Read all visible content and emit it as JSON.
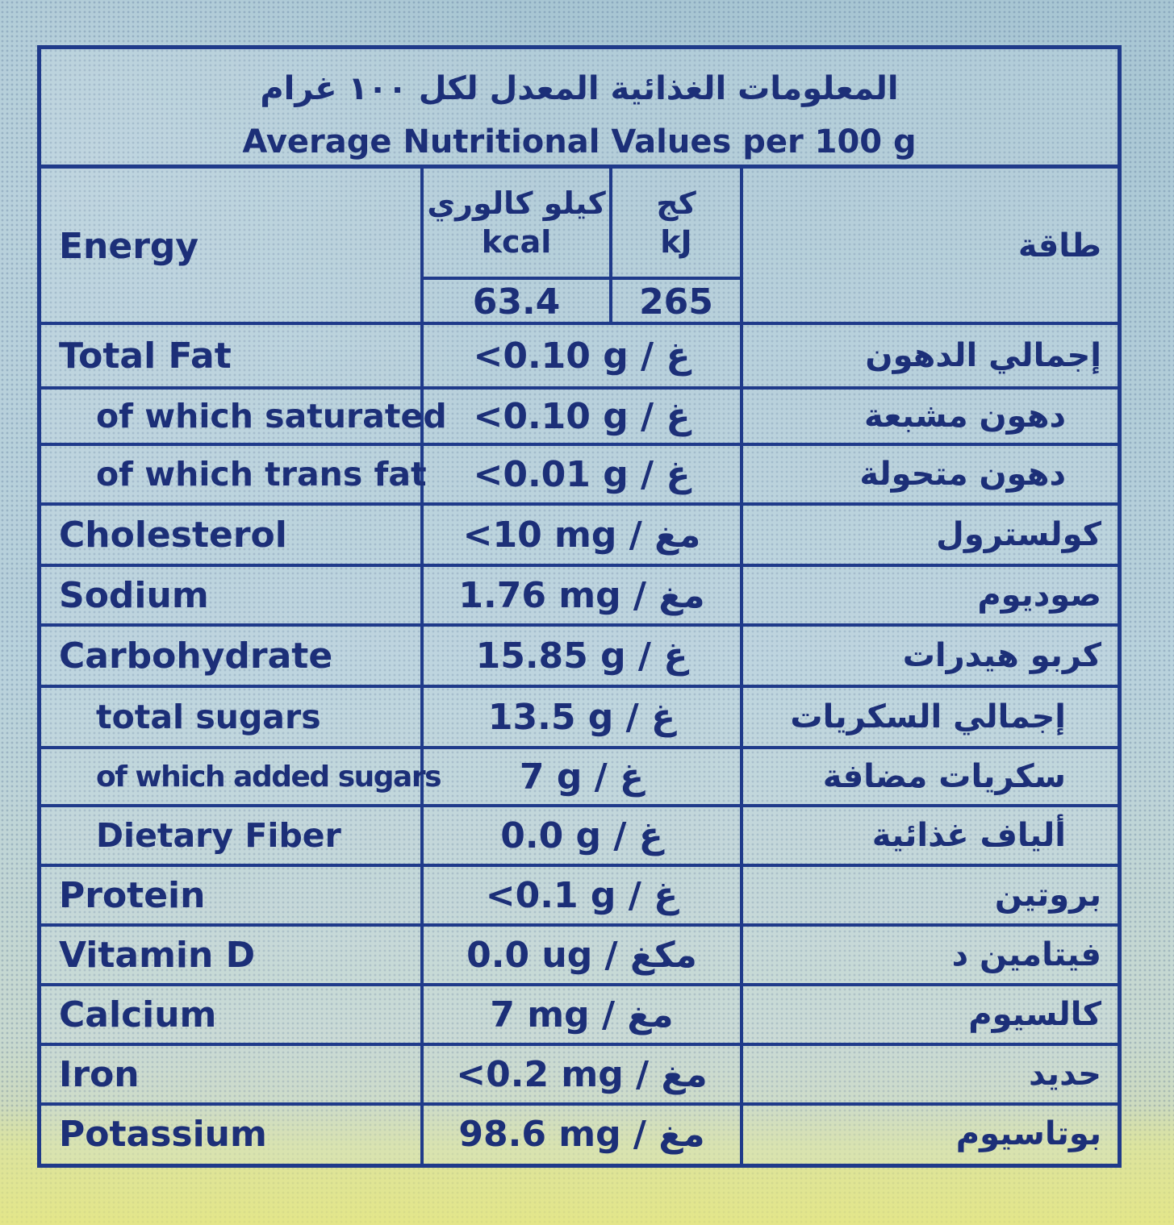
{
  "title": {
    "arabic": "المعلومات الغذائية المعدل لكل ١٠٠ غرام",
    "english": "Average Nutritional Values per 100 g"
  },
  "energy": {
    "label_en": "Energy",
    "label_ar": "طاقة",
    "kcal_label_ar": "كيلو كالوري",
    "kcal_label_en": "kcal",
    "kj_label_ar": "كج",
    "kj_label_en": "kJ",
    "kcal_value": "63.4",
    "kj_value": "265"
  },
  "rows": [
    {
      "en": "Total Fat",
      "value": "<0.10 g / غ",
      "ar": "إجمالي الدهون"
    },
    {
      "en": "of which saturated",
      "value": "<0.10 g / غ",
      "ar": "دهون مشبعة"
    },
    {
      "en": "of which trans fat",
      "value": "<0.01 g / غ",
      "ar": "دهون متحولة"
    },
    {
      "en": "Cholesterol",
      "value": "<10 mg / مغ",
      "ar": "كولسترول"
    },
    {
      "en": "Sodium",
      "value": "1.76 mg / مغ",
      "ar": "صوديوم"
    },
    {
      "en": "Carbohydrate",
      "value": "15.85 g / غ",
      "ar": "كربو هيدرات"
    },
    {
      "en": "total sugars",
      "value": "13.5 g / غ",
      "ar": "إجمالي السكريات"
    },
    {
      "en": "of which added sugars",
      "value": "7 g / غ",
      "ar": "سكريات مضافة"
    },
    {
      "en": "Dietary Fiber",
      "value": "0.0 g / غ",
      "ar": "ألياف غذائية"
    },
    {
      "en": "Protein",
      "value": "<0.1 g / غ",
      "ar": "بروتين"
    },
    {
      "en": "Vitamin D",
      "value": "0.0 ug / مكغ",
      "ar": "فيتامين د"
    },
    {
      "en": "Calcium",
      "value": "7 mg / مغ",
      "ar": "كالسيوم"
    },
    {
      "en": "Iron",
      "value": "<0.2 mg / مغ",
      "ar": "حديد"
    },
    {
      "en": "Potassium",
      "value": "98.6 mg / مغ",
      "ar": "بوتاسيوم"
    }
  ]
}
